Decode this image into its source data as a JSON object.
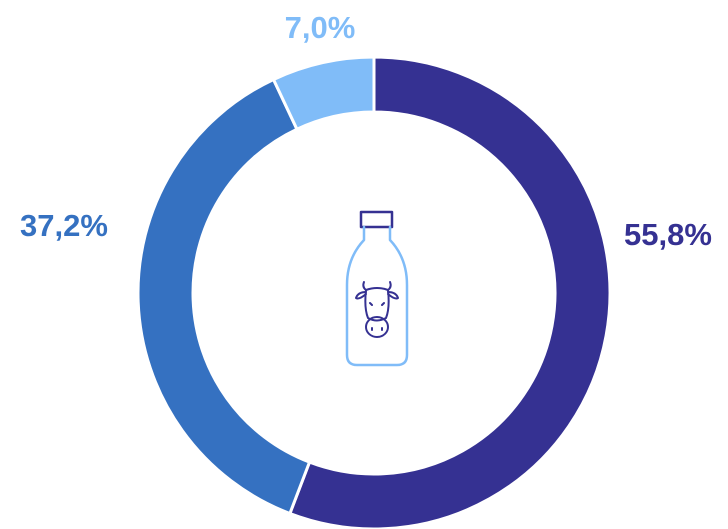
{
  "chart_data": {
    "type": "donut",
    "values": [
      55.8,
      37.2,
      7.0
    ],
    "value_labels": [
      "55,8%",
      "37,2%",
      "7,0%"
    ],
    "colors": [
      "#353192",
      "#3571c1",
      "#80bcf8"
    ]
  }
}
